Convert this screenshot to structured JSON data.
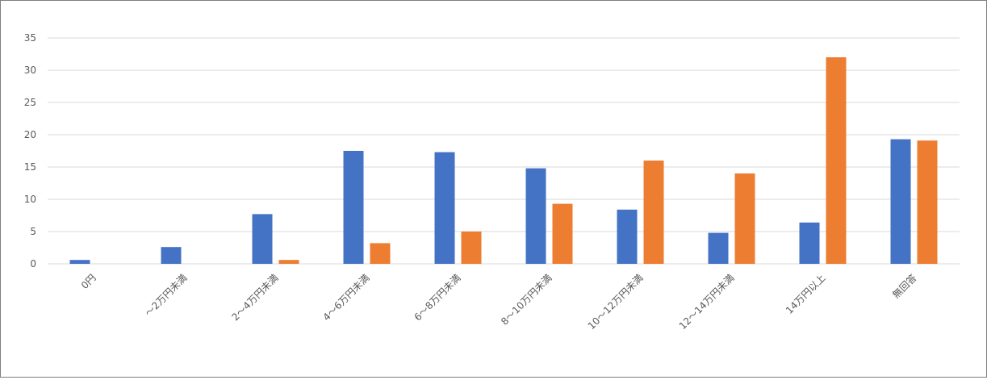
{
  "chart_data": {
    "type": "bar",
    "categories": [
      "0円",
      "～2万円未満",
      "2～4万円未満",
      "4～6万円未満",
      "6～8万円未満",
      "8～10万円未満",
      "10～12万円未満",
      "12～14万円未満",
      "14万円以上",
      "無回答"
    ],
    "series": [
      {
        "values": [
          0.6,
          2.6,
          7.7,
          17.5,
          17.3,
          14.8,
          8.4,
          4.8,
          6.4,
          19.3
        ]
      },
      {
        "values": [
          0,
          0,
          0.6,
          3.2,
          5.0,
          9.3,
          16.0,
          14.0,
          32.0,
          19.1
        ]
      }
    ],
    "ylim": [
      0,
      35
    ],
    "yticks": [
      0,
      5,
      10,
      15,
      20,
      25,
      30,
      35
    ],
    "grid": true,
    "colors": [
      "#4472c4",
      "#ed7d31"
    ],
    "gridColor": "#d9d9d9"
  }
}
